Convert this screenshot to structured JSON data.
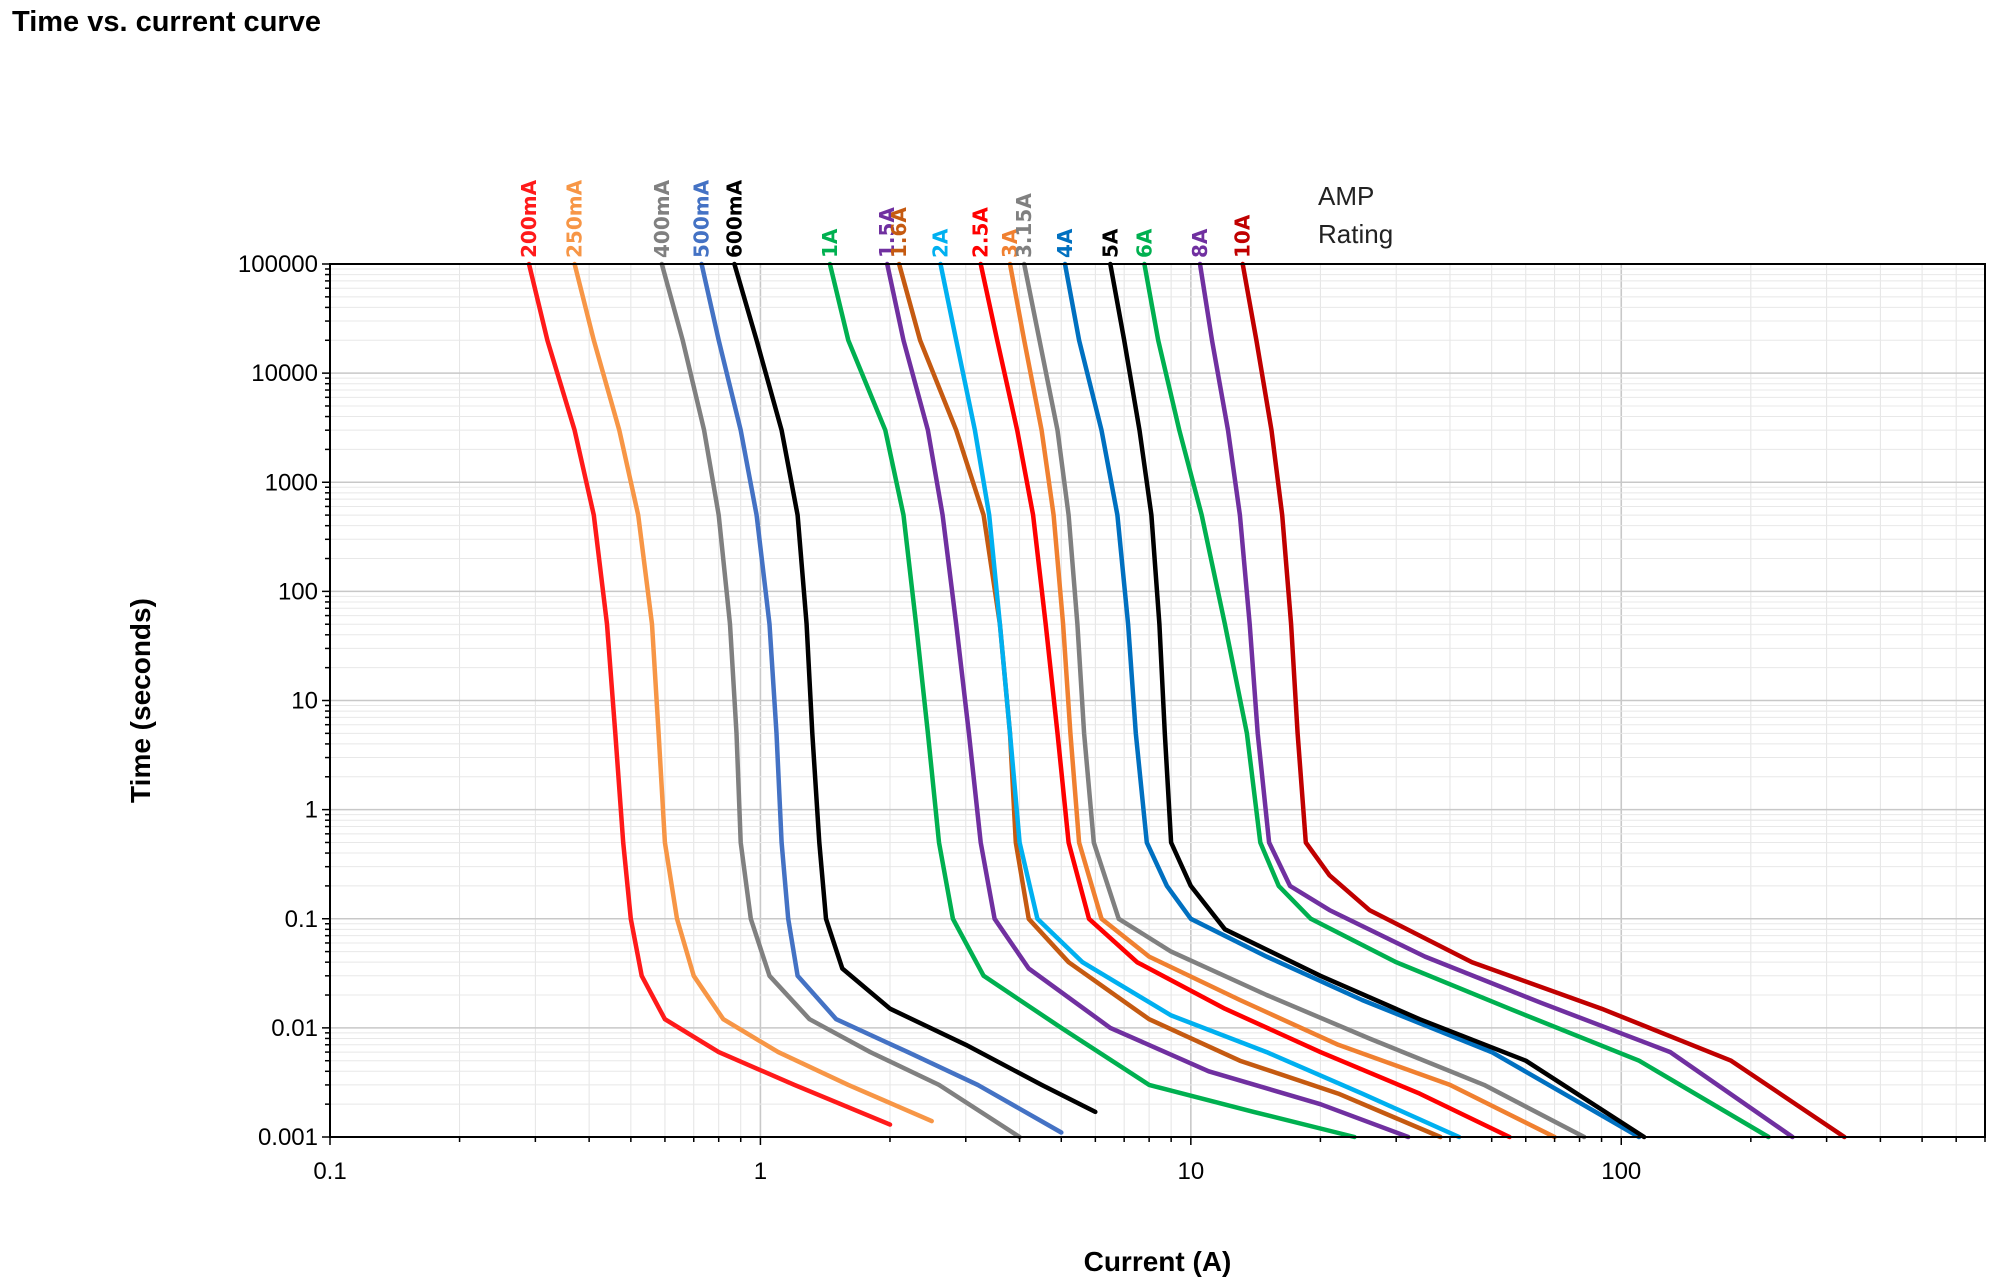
{
  "title": "Time vs. current curve",
  "chart_data": {
    "type": "line",
    "title": "Time vs. current curve",
    "xlabel": "Current (A)",
    "ylabel": "Time (seconds)",
    "xscale": "log",
    "yscale": "log",
    "xlim": [
      0.1,
      700
    ],
    "ylim": [
      0.001,
      100000
    ],
    "xticks": [
      "0.1",
      "1",
      "10",
      "100"
    ],
    "yticks": [
      "0.001",
      "0.01",
      "0.1",
      "1",
      "10",
      "100",
      "1000",
      "10000",
      "100000"
    ],
    "grid": true,
    "legend_note": [
      "AMP",
      "Rating"
    ],
    "series": [
      {
        "name": "200mA",
        "color": "#ff1a1a",
        "points": [
          [
            0.29,
            100000
          ],
          [
            0.32,
            20000
          ],
          [
            0.37,
            3000
          ],
          [
            0.41,
            500
          ],
          [
            0.44,
            50
          ],
          [
            0.46,
            5
          ],
          [
            0.48,
            0.5
          ],
          [
            0.5,
            0.1
          ],
          [
            0.53,
            0.03
          ],
          [
            0.6,
            0.012
          ],
          [
            0.8,
            0.006
          ],
          [
            1.2,
            0.003
          ],
          [
            2.0,
            0.0013
          ]
        ]
      },
      {
        "name": "250mA",
        "color": "#f79646",
        "points": [
          [
            0.37,
            100000
          ],
          [
            0.41,
            20000
          ],
          [
            0.47,
            3000
          ],
          [
            0.52,
            500
          ],
          [
            0.56,
            50
          ],
          [
            0.58,
            5
          ],
          [
            0.6,
            0.5
          ],
          [
            0.64,
            0.1
          ],
          [
            0.7,
            0.03
          ],
          [
            0.82,
            0.012
          ],
          [
            1.1,
            0.006
          ],
          [
            1.6,
            0.003
          ],
          [
            2.5,
            0.0014
          ]
        ]
      },
      {
        "name": "400mA",
        "color": "#808080",
        "points": [
          [
            0.59,
            100000
          ],
          [
            0.66,
            20000
          ],
          [
            0.74,
            3000
          ],
          [
            0.8,
            500
          ],
          [
            0.85,
            50
          ],
          [
            0.88,
            5
          ],
          [
            0.9,
            0.5
          ],
          [
            0.95,
            0.1
          ],
          [
            1.05,
            0.03
          ],
          [
            1.3,
            0.012
          ],
          [
            1.8,
            0.006
          ],
          [
            2.6,
            0.003
          ],
          [
            4.0,
            0.001
          ]
        ]
      },
      {
        "name": "500mA",
        "color": "#4472c4",
        "points": [
          [
            0.73,
            100000
          ],
          [
            0.8,
            20000
          ],
          [
            0.9,
            3000
          ],
          [
            0.98,
            500
          ],
          [
            1.05,
            50
          ],
          [
            1.09,
            5
          ],
          [
            1.12,
            0.5
          ],
          [
            1.16,
            0.1
          ],
          [
            1.22,
            0.03
          ],
          [
            1.5,
            0.012
          ],
          [
            2.2,
            0.006
          ],
          [
            3.2,
            0.003
          ],
          [
            5.0,
            0.0011
          ]
        ]
      },
      {
        "name": "600mA",
        "color": "#000000",
        "points": [
          [
            0.87,
            100000
          ],
          [
            0.98,
            20000
          ],
          [
            1.12,
            3000
          ],
          [
            1.22,
            500
          ],
          [
            1.28,
            50
          ],
          [
            1.32,
            5
          ],
          [
            1.37,
            0.5
          ],
          [
            1.42,
            0.1
          ],
          [
            1.55,
            0.035
          ],
          [
            2.0,
            0.015
          ],
          [
            3.0,
            0.007
          ],
          [
            4.5,
            0.003
          ],
          [
            6.0,
            0.0017
          ]
        ]
      },
      {
        "name": "1A",
        "color": "#00b050",
        "points": [
          [
            1.45,
            100000
          ],
          [
            1.6,
            20000
          ],
          [
            1.95,
            3000
          ],
          [
            2.15,
            500
          ],
          [
            2.3,
            50
          ],
          [
            2.45,
            5
          ],
          [
            2.6,
            0.5
          ],
          [
            2.8,
            0.1
          ],
          [
            3.3,
            0.03
          ],
          [
            5.0,
            0.01
          ],
          [
            8.0,
            0.003
          ],
          [
            14,
            0.0017
          ],
          [
            24,
            0.001
          ]
        ]
      },
      {
        "name": "1.5A",
        "color": "#7030a0",
        "points": [
          [
            1.97,
            100000
          ],
          [
            2.15,
            20000
          ],
          [
            2.45,
            3000
          ],
          [
            2.65,
            500
          ],
          [
            2.85,
            50
          ],
          [
            3.05,
            5
          ],
          [
            3.25,
            0.5
          ],
          [
            3.5,
            0.1
          ],
          [
            4.2,
            0.035
          ],
          [
            6.5,
            0.01
          ],
          [
            11,
            0.004
          ],
          [
            20,
            0.002
          ],
          [
            32,
            0.001
          ]
        ]
      },
      {
        "name": "1.6A",
        "color": "#c55a11",
        "points": [
          [
            2.1,
            100000
          ],
          [
            2.35,
            20000
          ],
          [
            2.85,
            3000
          ],
          [
            3.3,
            500
          ],
          [
            3.6,
            50
          ],
          [
            3.8,
            5
          ],
          [
            3.92,
            0.5
          ],
          [
            4.2,
            0.1
          ],
          [
            5.2,
            0.04
          ],
          [
            8.0,
            0.012
          ],
          [
            13,
            0.005
          ],
          [
            22,
            0.0025
          ],
          [
            38,
            0.001
          ]
        ]
      },
      {
        "name": "2A",
        "color": "#00b0f0",
        "points": [
          [
            2.62,
            100000
          ],
          [
            2.85,
            20000
          ],
          [
            3.15,
            3000
          ],
          [
            3.4,
            500
          ],
          [
            3.6,
            50
          ],
          [
            3.8,
            5
          ],
          [
            4.0,
            0.5
          ],
          [
            4.4,
            0.1
          ],
          [
            5.6,
            0.04
          ],
          [
            9.0,
            0.013
          ],
          [
            15,
            0.006
          ],
          [
            25,
            0.0025
          ],
          [
            42,
            0.001
          ]
        ]
      },
      {
        "name": "2.5A",
        "color": "#ff0000",
        "points": [
          [
            3.25,
            100000
          ],
          [
            3.55,
            20000
          ],
          [
            3.95,
            3000
          ],
          [
            4.3,
            500
          ],
          [
            4.6,
            50
          ],
          [
            4.9,
            5
          ],
          [
            5.2,
            0.5
          ],
          [
            5.8,
            0.1
          ],
          [
            7.5,
            0.04
          ],
          [
            12,
            0.015
          ],
          [
            20,
            0.006
          ],
          [
            34,
            0.0025
          ],
          [
            55,
            0.001
          ]
        ]
      },
      {
        "name": "3A",
        "color": "#f08030",
        "points": [
          [
            3.8,
            100000
          ],
          [
            4.1,
            20000
          ],
          [
            4.5,
            3000
          ],
          [
            4.8,
            500
          ],
          [
            5.05,
            50
          ],
          [
            5.25,
            5
          ],
          [
            5.5,
            0.5
          ],
          [
            6.2,
            0.1
          ],
          [
            8.0,
            0.045
          ],
          [
            13,
            0.018
          ],
          [
            22,
            0.007
          ],
          [
            40,
            0.003
          ],
          [
            70,
            0.001
          ]
        ]
      },
      {
        "name": "3.15A",
        "color": "#808080",
        "points": [
          [
            4.1,
            100000
          ],
          [
            4.45,
            20000
          ],
          [
            4.9,
            3000
          ],
          [
            5.2,
            500
          ],
          [
            5.45,
            50
          ],
          [
            5.65,
            5
          ],
          [
            5.95,
            0.5
          ],
          [
            6.8,
            0.1
          ],
          [
            9.0,
            0.05
          ],
          [
            15,
            0.02
          ],
          [
            26,
            0.008
          ],
          [
            48,
            0.003
          ],
          [
            82,
            0.001
          ]
        ]
      },
      {
        "name": "4A",
        "color": "#0070c0",
        "points": [
          [
            5.1,
            100000
          ],
          [
            5.5,
            20000
          ],
          [
            6.2,
            3000
          ],
          [
            6.75,
            500
          ],
          [
            7.15,
            50
          ],
          [
            7.45,
            5
          ],
          [
            7.9,
            0.5
          ],
          [
            8.8,
            0.2
          ],
          [
            10,
            0.1
          ],
          [
            15,
            0.045
          ],
          [
            25,
            0.018
          ],
          [
            50,
            0.006
          ],
          [
            110,
            0.001
          ]
        ]
      },
      {
        "name": "5A",
        "color": "#000000",
        "points": [
          [
            6.5,
            100000
          ],
          [
            7.0,
            20000
          ],
          [
            7.6,
            3000
          ],
          [
            8.1,
            500
          ],
          [
            8.45,
            50
          ],
          [
            8.7,
            5
          ],
          [
            9.0,
            0.5
          ],
          [
            10,
            0.2
          ],
          [
            12,
            0.08
          ],
          [
            20,
            0.03
          ],
          [
            34,
            0.012
          ],
          [
            60,
            0.005
          ],
          [
            113,
            0.001
          ]
        ]
      },
      {
        "name": "6A",
        "color": "#00b050",
        "points": [
          [
            7.8,
            100000
          ],
          [
            8.4,
            20000
          ],
          [
            9.4,
            3000
          ],
          [
            10.6,
            500
          ],
          [
            12,
            50
          ],
          [
            13.5,
            5
          ],
          [
            14.5,
            0.5
          ],
          [
            16,
            0.2
          ],
          [
            19,
            0.1
          ],
          [
            30,
            0.04
          ],
          [
            55,
            0.015
          ],
          [
            110,
            0.005
          ],
          [
            220,
            0.001
          ]
        ]
      },
      {
        "name": "8A",
        "color": "#7030a0",
        "points": [
          [
            10.5,
            100000
          ],
          [
            11.2,
            20000
          ],
          [
            12.2,
            3000
          ],
          [
            13,
            500
          ],
          [
            13.7,
            50
          ],
          [
            14.3,
            5
          ],
          [
            15.2,
            0.5
          ],
          [
            17,
            0.2
          ],
          [
            21,
            0.12
          ],
          [
            35,
            0.045
          ],
          [
            65,
            0.017
          ],
          [
            130,
            0.006
          ],
          [
            250,
            0.001
          ]
        ]
      },
      {
        "name": "10A",
        "color": "#c00000",
        "points": [
          [
            13.2,
            100000
          ],
          [
            14.2,
            20000
          ],
          [
            15.4,
            3000
          ],
          [
            16.3,
            500
          ],
          [
            17.1,
            50
          ],
          [
            17.7,
            5
          ],
          [
            18.5,
            0.5
          ],
          [
            21,
            0.25
          ],
          [
            26,
            0.12
          ],
          [
            45,
            0.04
          ],
          [
            90,
            0.015
          ],
          [
            180,
            0.005
          ],
          [
            330,
            0.001
          ]
        ]
      }
    ]
  }
}
